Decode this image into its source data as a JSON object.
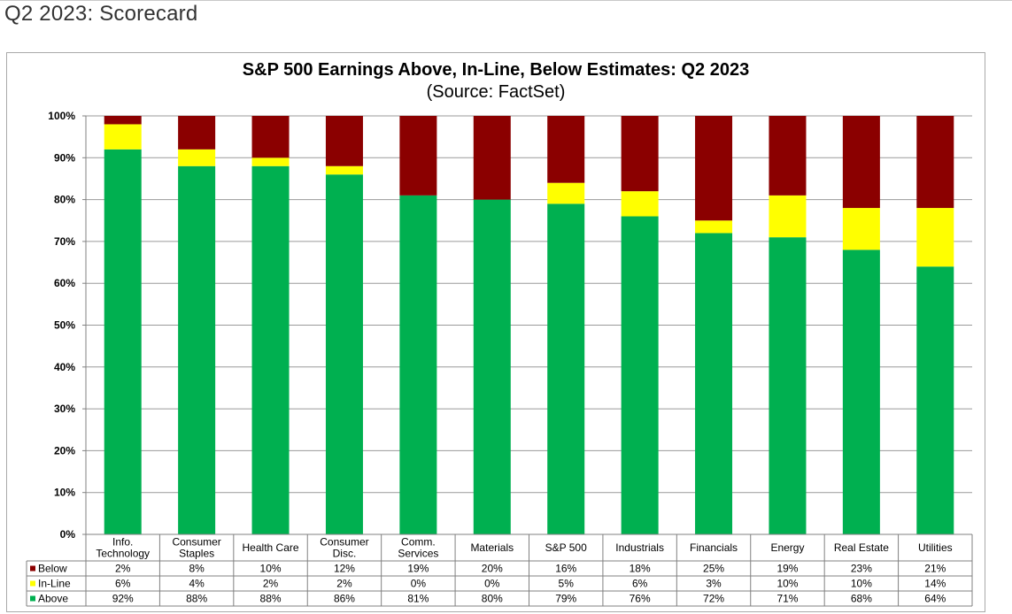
{
  "page": {
    "title": "Q2 2023: Scorecard"
  },
  "chart_data": {
    "type": "bar",
    "stacked": true,
    "title": "S&P 500 Earnings Above, In-Line, Below Estimates: Q2 2023",
    "subtitle": "(Source: FactSet)",
    "categories": [
      [
        "Info.",
        "Technology"
      ],
      [
        "Consumer",
        "Staples"
      ],
      [
        "Health Care"
      ],
      [
        "Consumer",
        "Disc."
      ],
      [
        "Comm.",
        "Services"
      ],
      [
        "Materials"
      ],
      [
        "S&P 500"
      ],
      [
        "Industrials"
      ],
      [
        "Financials"
      ],
      [
        "Energy"
      ],
      [
        "Real Estate"
      ],
      [
        "Utilities"
      ]
    ],
    "series": [
      {
        "name": "Below",
        "color": "#8b0000",
        "values": [
          2,
          8,
          10,
          12,
          19,
          20,
          16,
          18,
          25,
          19,
          23,
          21
        ]
      },
      {
        "name": "In-Line",
        "color": "#ffff00",
        "values": [
          6,
          4,
          2,
          2,
          0,
          0,
          5,
          6,
          3,
          10,
          10,
          14
        ]
      },
      {
        "name": "Above",
        "color": "#00b050",
        "values": [
          92,
          88,
          88,
          86,
          81,
          80,
          79,
          76,
          72,
          71,
          68,
          64
        ]
      }
    ],
    "y_ticks": [
      "0%",
      "10%",
      "20%",
      "30%",
      "40%",
      "50%",
      "60%",
      "70%",
      "80%",
      "90%",
      "100%"
    ],
    "ylim": [
      0,
      100
    ],
    "grid": true,
    "data_table": true,
    "legend": "data-table-left"
  }
}
